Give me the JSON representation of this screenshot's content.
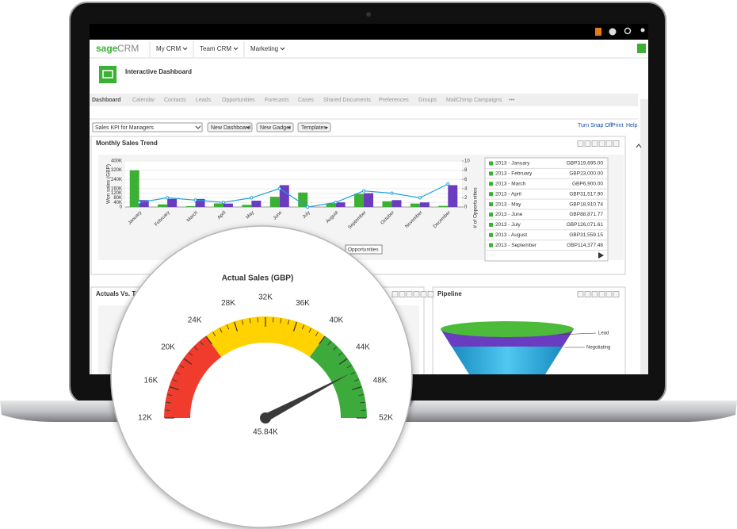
{
  "top_nav": {
    "logo_a": "sage",
    "logo_b": "CRM",
    "menus": [
      "My CRM",
      "Team CRM",
      "Marketing"
    ]
  },
  "page_title": "Interactive Dashboard",
  "tabs": [
    "Dashboard",
    "Calendar",
    "Contacts",
    "Leads",
    "Opportunities",
    "Forecasts",
    "Cases",
    "Shared Documents",
    "Preferences",
    "Groups",
    "MailChimp Campaigns",
    "•••"
  ],
  "toolbar": {
    "dashboard_select": "Sales KPI for Managers",
    "buttons": [
      "New Dashboard",
      "New Gadget",
      "Templates"
    ],
    "links": [
      "Turn Snap Off",
      "Print",
      "Help"
    ]
  },
  "panels": {
    "actuals": "Actuals Vs. T",
    "pipeline": "Pipeline"
  },
  "sales_table": {
    "rows": [
      [
        "2013 - January",
        "GBP319,695.00"
      ],
      [
        "2013 - February",
        "GBP23,000.00"
      ],
      [
        "2013 - March",
        "GBP6,900.00"
      ],
      [
        "2013 - April",
        "GBP31,517.90"
      ],
      [
        "2013 - May",
        "GBP18,910.74"
      ],
      [
        "2013 - June",
        "GBP88,871.77"
      ],
      [
        "2013 - July",
        "GBP126,071.61"
      ],
      [
        "2013 - August",
        "GBP31,559.15"
      ],
      [
        "2013 - September",
        "GBP114,377.48"
      ]
    ]
  },
  "tooltip": "Opportunities",
  "pipeline": {
    "stages": [
      "Lead",
      "Negotiating"
    ]
  },
  "chart_data": [
    {
      "type": "bar",
      "title": "Monthly Sales Trend",
      "categories": [
        "January",
        "February",
        "March",
        "April",
        "May",
        "June",
        "July",
        "August",
        "September",
        "October",
        "November",
        "December"
      ],
      "ylabel": "Won sales (GBP)",
      "y2label": "# of Opportunities",
      "series": [
        {
          "color": "#3cb034",
          "values": [
            319695,
            23000,
            6900,
            31517.9,
            18910.74,
            88871.77,
            126071.61,
            31559.15,
            114377.48,
            50000,
            30000,
            10000
          ]
        },
        {
          "color": "#6a3cc0",
          "values": [
            60000,
            70000,
            70000,
            30000,
            55000,
            190000,
            0,
            40000,
            120000,
            60000,
            40000,
            190000
          ]
        },
        {
          "color": "#1ea0dc",
          "type": "line",
          "axis": "y2",
          "values": [
            1,
            2,
            1.5,
            1,
            2,
            4,
            0,
            1,
            3.5,
            3,
            2,
            5
          ]
        }
      ],
      "ylim": [
        0,
        400000
      ],
      "yticks": [
        {
          "value": 0,
          "label": "0"
        },
        {
          "value": 40000,
          "label": "40K"
        },
        {
          "value": 80000,
          "label": "80K"
        },
        {
          "value": 120000,
          "label": "120K"
        },
        {
          "value": 160000,
          "label": "160K"
        },
        {
          "value": 240000,
          "label": "240K"
        },
        {
          "value": 320000,
          "label": "320K"
        },
        {
          "value": 400000,
          "label": "400K"
        }
      ],
      "y2lim": [
        0,
        10
      ],
      "y2ticks": [
        0,
        2,
        4,
        6,
        8,
        10
      ]
    },
    {
      "type": "gauge",
      "title": "Actual Sales (GBP)",
      "value": 45.84,
      "value_label": "45.84K",
      "ylim": [
        12,
        52
      ],
      "yticks": [
        {
          "value": 12,
          "label": "12K"
        },
        {
          "value": 16,
          "label": "16K"
        },
        {
          "value": 20,
          "label": "20K"
        },
        {
          "value": 24,
          "label": "24K"
        },
        {
          "value": 28,
          "label": "28K"
        },
        {
          "value": 32,
          "label": "32K"
        },
        {
          "value": 36,
          "label": "36K"
        },
        {
          "value": 40,
          "label": "40K"
        },
        {
          "value": 44,
          "label": "44K"
        },
        {
          "value": 48,
          "label": "48K"
        },
        {
          "value": 52,
          "label": "52K"
        }
      ],
      "bands": [
        {
          "from": 12,
          "to": 24,
          "color": "#f03c2c"
        },
        {
          "from": 24,
          "to": 40,
          "color": "#ffd200"
        },
        {
          "from": 40,
          "to": 52,
          "color": "#3daa3c"
        }
      ]
    }
  ]
}
